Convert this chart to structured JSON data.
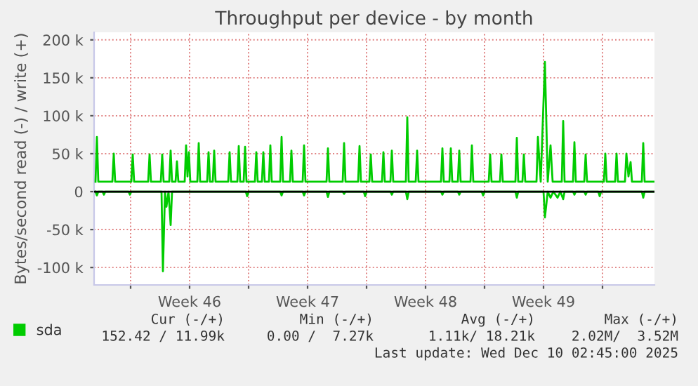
{
  "chart_data": {
    "type": "line",
    "title": "Throughput per device - by month",
    "ylabel": "Bytes/second read (-) / write (+)",
    "xlim": [
      "2025-11-06T20:00",
      "2025-12-10T02:00"
    ],
    "ylim": [
      -123000,
      210000
    ],
    "xticks": [
      {
        "value": "2025-11-09T00:00",
        "label": null
      },
      {
        "value": "2025-11-12T12:00",
        "label": "Week 46"
      },
      {
        "value": "2025-11-16T00:00",
        "label": null
      },
      {
        "value": "2025-11-19T12:00",
        "label": "Week 47"
      },
      {
        "value": "2025-11-23T00:00",
        "label": null
      },
      {
        "value": "2025-11-26T12:00",
        "label": "Week 48"
      },
      {
        "value": "2025-11-30T00:00",
        "label": null
      },
      {
        "value": "2025-12-03T12:00",
        "label": "Week 49"
      },
      {
        "value": "2025-12-07T00:00",
        "label": null
      }
    ],
    "yticks": [
      {
        "value": -100000,
        "label": "-100 k"
      },
      {
        "value": -50000,
        "label": "-50 k"
      },
      {
        "value": 0,
        "label": "0"
      },
      {
        "value": 50000,
        "label": "50 k"
      },
      {
        "value": 100000,
        "label": "100 k"
      },
      {
        "value": 150000,
        "label": "150 k"
      },
      {
        "value": 200000,
        "label": "200 k"
      }
    ],
    "grid": true,
    "legend": "bottom left",
    "marker": "none",
    "line_style": "solid",
    "ref_lines": [
      {
        "axis": "y",
        "value": 0,
        "label": null,
        "color": "#000000"
      }
    ],
    "annotations": [
      "Cur (-/+)",
      "Min (-/+)",
      "Avg (-/+)",
      "Max (-/+)",
      "152.42 / 11.99k",
      "0.00 /  7.27k",
      "1.11k/ 18.21k",
      "2.02M/  3.52M",
      "Last update: Wed Dec 10 02:45:00 2025"
    ],
    "series": [
      {
        "name": "sda",
        "color": "#00cc00",
        "x": [
          "2025-11-06T22:00",
          "2025-11-07T00:00",
          "2025-11-07T02:00",
          "2025-11-07T22:00",
          "2025-11-08T00:00",
          "2025-11-08T02:00",
          "2025-11-09T01:00",
          "2025-11-09T03:00",
          "2025-11-09T05:00",
          "2025-11-10T01:00",
          "2025-11-10T03:00",
          "2025-11-10T05:00",
          "2025-11-10T19:00",
          "2025-11-10T21:00",
          "2025-11-10T23:00",
          "2025-11-11T07:00",
          "2025-11-11T09:00",
          "2025-11-11T11:00",
          "2025-11-11T16:00",
          "2025-11-11T18:00",
          "2025-11-11T20:00",
          "2025-11-12T05:00",
          "2025-11-12T07:00",
          "2025-11-12T09:00",
          "2025-11-12T11:00",
          "2025-11-12T13:00",
          "2025-11-12T23:00",
          "2025-11-13T01:00",
          "2025-11-13T03:00",
          "2025-11-13T13:00",
          "2025-11-13T15:00",
          "2025-11-13T17:00",
          "2025-11-13T21:00",
          "2025-11-13T23:00",
          "2025-11-14T01:00",
          "2025-11-14T19:00",
          "2025-11-14T21:00",
          "2025-11-14T23:00",
          "2025-11-15T08:00",
          "2025-11-15T10:00",
          "2025-11-15T12:00",
          "2025-11-15T17:00",
          "2025-11-15T19:00",
          "2025-11-15T21:00",
          "2025-11-16T09:00",
          "2025-11-16T11:00",
          "2025-11-16T13:00",
          "2025-11-16T19:00",
          "2025-11-16T21:00",
          "2025-11-16T23:00",
          "2025-11-17T05:00",
          "2025-11-17T07:00",
          "2025-11-17T09:00",
          "2025-11-17T21:00",
          "2025-11-17T23:00",
          "2025-11-18T01:00",
          "2025-11-18T11:00",
          "2025-11-18T13:00",
          "2025-11-18T15:00",
          "2025-11-19T05:00",
          "2025-11-19T07:00",
          "2025-11-19T09:00",
          "2025-11-20T15:00",
          "2025-11-20T17:00",
          "2025-11-20T19:00",
          "2025-11-21T14:00",
          "2025-11-21T16:00",
          "2025-11-21T18:00",
          "2025-11-22T12:00",
          "2025-11-22T14:00",
          "2025-11-22T16:00",
          "2025-11-23T04:00",
          "2025-11-23T06:00",
          "2025-11-23T08:00",
          "2025-11-23T22:00",
          "2025-11-24T00:00",
          "2025-11-24T02:00",
          "2025-11-24T10:00",
          "2025-11-24T12:00",
          "2025-11-24T14:00",
          "2025-11-25T08:00",
          "2025-11-25T10:00",
          "2025-11-25T12:00",
          "2025-11-25T22:00",
          "2025-11-26T00:00",
          "2025-11-26T02:00",
          "2025-11-27T10:00",
          "2025-11-27T12:00",
          "2025-11-27T14:00",
          "2025-11-27T22:00",
          "2025-11-28T00:00",
          "2025-11-28T02:00",
          "2025-11-28T10:00",
          "2025-11-28T12:00",
          "2025-11-28T14:00",
          "2025-11-29T04:00",
          "2025-11-29T06:00",
          "2025-11-29T08:00",
          "2025-11-30T06:00",
          "2025-11-30T08:00",
          "2025-11-30T10:00",
          "2025-11-30T22:00",
          "2025-12-01T00:00",
          "2025-12-01T02:00",
          "2025-12-01T20:00",
          "2025-12-01T22:00",
          "2025-12-02T00:00",
          "2025-12-02T06:00",
          "2025-12-02T08:00",
          "2025-12-02T10:00",
          "2025-12-03T02:00",
          "2025-12-03T04:00",
          "2025-12-03T08:00",
          "2025-12-03T14:00",
          "2025-12-03T18:00",
          "2025-12-03T22:00",
          "2025-12-04T01:00",
          "2025-12-04T14:00",
          "2025-12-04T16:00",
          "2025-12-04T18:00",
          "2025-12-05T06:00",
          "2025-12-05T08:00",
          "2025-12-05T10:00",
          "2025-12-05T22:00",
          "2025-12-06T00:00",
          "2025-12-06T02:00",
          "2025-12-07T02:00",
          "2025-12-07T04:00",
          "2025-12-07T06:00",
          "2025-12-07T18:00",
          "2025-12-07T20:00",
          "2025-12-07T22:00",
          "2025-12-08T08:00",
          "2025-12-08T10:00",
          "2025-12-08T13:00",
          "2025-12-08T16:00",
          "2025-12-08T18:00",
          "2025-12-09T08:00",
          "2025-12-09T10:00",
          "2025-12-09T12:00",
          "2025-12-10T02:00"
        ],
        "values": [
          13000,
          72000,
          13000,
          13000,
          50000,
          13000,
          13000,
          49000,
          13000,
          13000,
          49000,
          13000,
          13000,
          49000,
          13000,
          13000,
          54000,
          13000,
          13000,
          40000,
          13000,
          13000,
          61000,
          20000,
          52000,
          13000,
          13000,
          64000,
          13000,
          13000,
          52000,
          13000,
          13000,
          54000,
          13000,
          13000,
          52000,
          13000,
          13000,
          60000,
          13000,
          13000,
          59000,
          13000,
          13000,
          52000,
          13000,
          13000,
          52000,
          13000,
          13000,
          61000,
          13000,
          13000,
          72000,
          13000,
          13000,
          54000,
          13000,
          13000,
          61000,
          13000,
          13000,
          57000,
          13000,
          13000,
          64000,
          13000,
          13000,
          60000,
          13000,
          13000,
          49000,
          13000,
          13000,
          52000,
          13000,
          13000,
          54000,
          13000,
          13000,
          98000,
          13000,
          13000,
          54000,
          13000,
          13000,
          57000,
          13000,
          13000,
          57000,
          13000,
          13000,
          54000,
          13000,
          13000,
          61000,
          13000,
          13000,
          49000,
          13000,
          13000,
          49000,
          13000,
          13000,
          71000,
          13000,
          13000,
          49000,
          13000,
          13000,
          72000,
          13000,
          171000,
          13000,
          61000,
          13000,
          13000,
          93000,
          13000,
          13000,
          65000,
          13000,
          13000,
          49000,
          13000,
          13000,
          50000,
          13000,
          13000,
          50000,
          13000,
          13000,
          50000,
          20000,
          39000,
          13000,
          13000,
          64000,
          13000,
          13000
        ]
      },
      {
        "color": "#00cc00",
        "x": [
          "2025-11-06T22:00",
          "2025-11-07T00:00",
          "2025-11-07T02:00",
          "2025-11-07T08:00",
          "2025-11-07T10:00",
          "2025-11-07T12:00",
          "2025-11-08T21:00",
          "2025-11-08T23:00",
          "2025-11-09T01:00",
          "2025-11-10T20:00",
          "2025-11-10T22:00",
          "2025-11-11T01:00",
          "2025-11-11T03:00",
          "2025-11-11T06:00",
          "2025-11-11T09:00",
          "2025-11-11T11:00",
          "2025-11-15T20:00",
          "2025-11-15T22:00",
          "2025-11-16T00:00",
          "2025-11-17T21:00",
          "2025-11-17T23:00",
          "2025-11-18T01:00",
          "2025-11-19T05:00",
          "2025-11-19T07:00",
          "2025-11-19T09:00",
          "2025-11-20T15:00",
          "2025-11-20T17:00",
          "2025-11-20T19:00",
          "2025-11-21T14:00",
          "2025-11-21T16:00",
          "2025-11-21T18:00",
          "2025-11-22T20:00",
          "2025-11-22T22:00",
          "2025-11-23T00:00",
          "2025-11-24T10:00",
          "2025-11-24T12:00",
          "2025-11-24T14:00",
          "2025-11-25T08:00",
          "2025-11-25T10:00",
          "2025-11-25T12:00",
          "2025-11-27T10:00",
          "2025-11-27T12:00",
          "2025-11-27T14:00",
          "2025-11-28T10:00",
          "2025-11-28T12:00",
          "2025-11-28T14:00",
          "2025-11-29T20:00",
          "2025-11-29T22:00",
          "2025-11-30T00:00",
          "2025-12-01T20:00",
          "2025-12-01T22:00",
          "2025-12-02T00:00",
          "2025-12-03T12:00",
          "2025-12-03T14:00",
          "2025-12-03T18:00",
          "2025-12-03T22:00",
          "2025-12-04T02:00",
          "2025-12-04T08:00",
          "2025-12-04T12:00",
          "2025-12-04T16:00",
          "2025-12-04T18:00",
          "2025-12-05T06:00",
          "2025-12-05T08:00",
          "2025-12-05T10:00",
          "2025-12-05T22:00",
          "2025-12-06T00:00",
          "2025-12-06T02:00",
          "2025-12-06T18:00",
          "2025-12-06T20:00",
          "2025-12-06T22:00",
          "2025-12-09T08:00",
          "2025-12-09T10:00",
          "2025-12-09T12:00",
          "2025-12-10T02:00"
        ],
        "values": [
          0,
          -5000,
          0,
          0,
          -4000,
          0,
          0,
          -4000,
          0,
          0,
          -105000,
          0,
          -20000,
          0,
          -44000,
          0,
          0,
          -6000,
          0,
          0,
          -5000,
          0,
          0,
          -5000,
          0,
          0,
          -7000,
          0,
          0,
          -3000,
          0,
          0,
          -6000,
          0,
          0,
          -4000,
          0,
          0,
          -10000,
          0,
          0,
          -4000,
          0,
          0,
          -4000,
          0,
          0,
          -5000,
          0,
          0,
          -8000,
          0,
          0,
          -34000,
          0,
          -8000,
          0,
          -8000,
          0,
          -10000,
          0,
          0,
          -4000,
          0,
          0,
          -4000,
          0,
          0,
          -6000,
          0,
          0,
          -8000,
          0,
          0
        ]
      }
    ]
  }
}
